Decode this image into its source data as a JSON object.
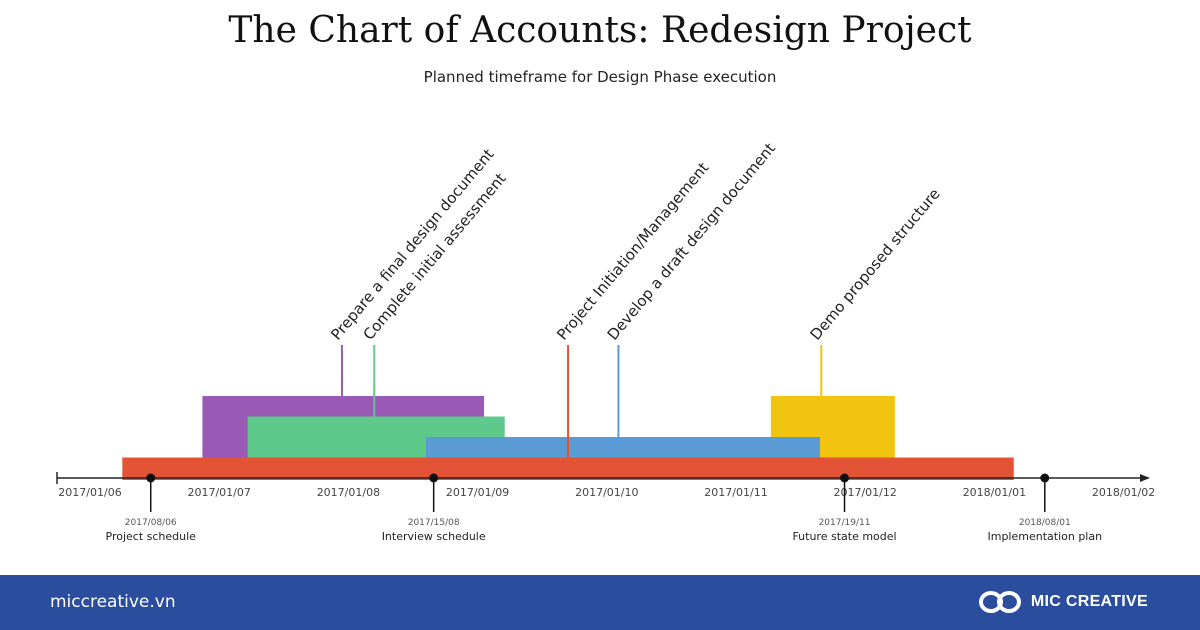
{
  "header": {
    "title": "The Chart of Accounts: Redesign Project",
    "subtitle": "Planned timeframe for Design Phase execution"
  },
  "chart_data": {
    "type": "timeline",
    "xlim": [
      "2017/01/06",
      "2018/01/02"
    ],
    "tick_labels": [
      "2017/01/06",
      "2017/01/07",
      "2017/01/08",
      "2017/01/09",
      "2017/01/10",
      "2017/01/11",
      "2017/01/12",
      "2018/01/01",
      "2018/01/02"
    ],
    "bars": [
      {
        "name": "Prepare a final design document",
        "start": 0.87,
        "end": 3.05,
        "color": "#9b59b6",
        "row": 4
      },
      {
        "name": "Complete initial assessment",
        "start": 1.22,
        "end": 3.21,
        "color": "#5fc98b",
        "row": 3
      },
      {
        "name": "Demo proposed structure",
        "start": 5.27,
        "end": 6.23,
        "color": "#f1c40f",
        "row": 4
      },
      {
        "name": "Develop a draft design document",
        "start": 2.6,
        "end": 5.65,
        "color": "#5b9bd5",
        "row": 2
      },
      {
        "name": "Project Initiation/Management",
        "start": 0.25,
        "end": 7.15,
        "color": "#e35336",
        "row": 1
      }
    ],
    "labels": [
      {
        "text": "Prepare a final design document",
        "x": 1.95,
        "color": "#9b59b6"
      },
      {
        "text": "Complete initial assessment",
        "x": 2.2,
        "color": "#5fc98b"
      },
      {
        "text": "Project Initiation/Management",
        "x": 3.7,
        "color": "#e35336"
      },
      {
        "text": "Develop a draft design document",
        "x": 4.09,
        "color": "#5b9bd5"
      },
      {
        "text": "Demo proposed structure",
        "x": 5.66,
        "color": "#f1c40f"
      }
    ],
    "milestones": [
      {
        "date": "2017/08/06",
        "name": "Project schedule",
        "x": 0.47
      },
      {
        "date": "2017/15/08",
        "name": "Interview schedule",
        "x": 2.66
      },
      {
        "date": "2017/19/11",
        "name": "Future state model",
        "x": 5.84
      },
      {
        "date": "2018/08/01",
        "name": "Implementation plan",
        "x": 7.39
      }
    ]
  },
  "footer": {
    "website": "miccreative.vn",
    "brand": "MIC CREATIVE",
    "background": "#2a4d9e"
  }
}
